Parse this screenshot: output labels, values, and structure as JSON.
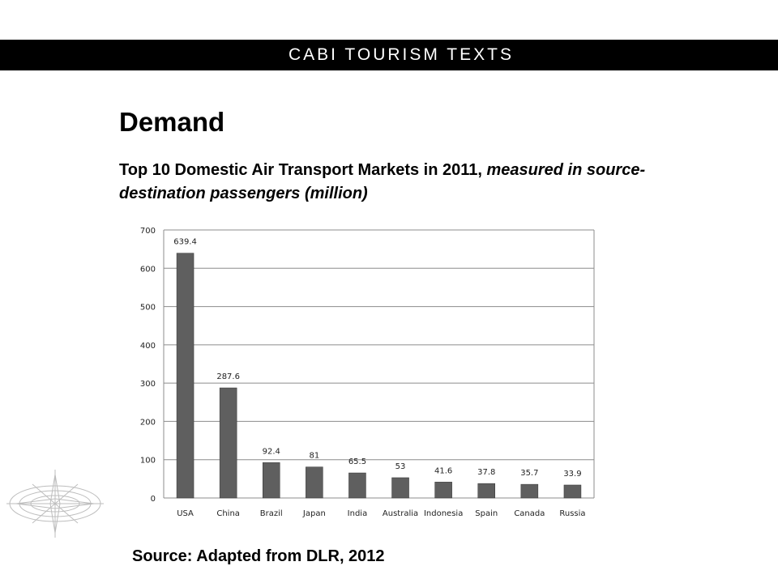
{
  "header": {
    "banner_text": "CABI TOURISM TEXTS"
  },
  "slide": {
    "heading": "Demand",
    "subtitle_main": "Top 10 Domestic Air Transport Markets in 2011,",
    "subtitle_italic": "measured in source-destination passengers (million)",
    "source": "Source: Adapted from  DLR, 2012"
  },
  "decoration": {
    "compass_icon": "compass-rose-icon"
  },
  "colors": {
    "bar": "#5f5f5f",
    "grid": "#8c8c8c",
    "banner_bg": "#000000",
    "banner_text": "#ffffff"
  },
  "chart_data": {
    "type": "bar",
    "categories": [
      "USA",
      "China",
      "Brazil",
      "Japan",
      "India",
      "Australia",
      "Indonesia",
      "Spain",
      "Canada",
      "Russia"
    ],
    "values": [
      639.4,
      287.6,
      92.4,
      81,
      65.5,
      53,
      41.6,
      37.8,
      35.7,
      33.9
    ],
    "value_labels": [
      "639.4",
      "287.6",
      "92.4",
      "81",
      "65.5",
      "53",
      "41.6",
      "37.8",
      "35.7",
      "33.9"
    ],
    "ylim": [
      0,
      700
    ],
    "yticks": [
      0,
      100,
      200,
      300,
      400,
      500,
      600,
      700
    ],
    "grid": true,
    "legend": "none"
  }
}
